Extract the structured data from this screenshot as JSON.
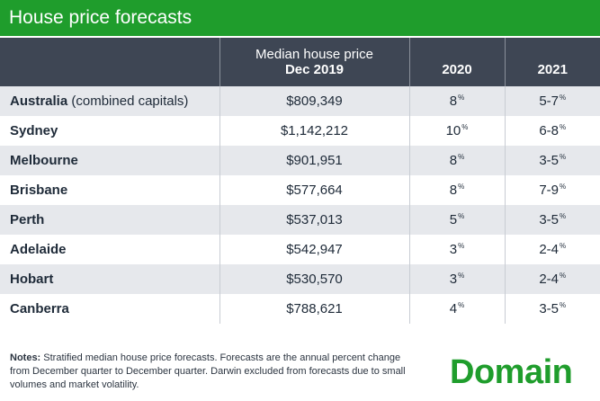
{
  "title": "House price forecasts",
  "header": {
    "col_price_line1": "Median house price",
    "col_price_line2": "Dec 2019",
    "col_2020": "2020",
    "col_2021": "2021"
  },
  "pct_symbol": "%",
  "rows": [
    {
      "name": "Australia",
      "suffix": " (combined capitals)",
      "price": "$809,349",
      "y2020": "8",
      "y2021": "5-7"
    },
    {
      "name": "Sydney",
      "suffix": "",
      "price": "$1,142,212",
      "y2020": "10",
      "y2021": "6-8"
    },
    {
      "name": "Melbourne",
      "suffix": "",
      "price": "$901,951",
      "y2020": "8",
      "y2021": "3-5"
    },
    {
      "name": "Brisbane",
      "suffix": "",
      "price": "$577,664",
      "y2020": "8",
      "y2021": "7-9"
    },
    {
      "name": "Perth",
      "suffix": "",
      "price": "$537,013",
      "y2020": "5",
      "y2021": "3-5"
    },
    {
      "name": "Adelaide",
      "suffix": "",
      "price": "$542,947",
      "y2020": "3",
      "y2021": "2-4"
    },
    {
      "name": "Hobart",
      "suffix": "",
      "price": "$530,570",
      "y2020": "3",
      "y2021": "2-4"
    },
    {
      "name": "Canberra",
      "suffix": "",
      "price": "$788,621",
      "y2020": "4",
      "y2021": "3-5"
    }
  ],
  "notes": {
    "label": "Notes:",
    "text": " Stratified median house price forecasts. Forecasts are the annual percent change from December quarter to December quarter. Darwin excluded from forecasts due to small volumes and market volatility."
  },
  "logo_text": "Domain",
  "colors": {
    "brand": "#1f9d2c",
    "header_bg": "#3e4654",
    "row_alt": "#e6e8ec"
  },
  "chart_data": {
    "type": "table",
    "title": "House price forecasts",
    "columns": [
      "",
      "Median house price Dec 2019",
      "2020",
      "2021"
    ],
    "rows": [
      [
        "Australia (combined capitals)",
        "$809,349",
        "8%",
        "5-7%"
      ],
      [
        "Sydney",
        "$1,142,212",
        "10%",
        "6-8%"
      ],
      [
        "Melbourne",
        "$901,951",
        "8%",
        "3-5%"
      ],
      [
        "Brisbane",
        "$577,664",
        "8%",
        "7-9%"
      ],
      [
        "Perth",
        "$537,013",
        "5%",
        "3-5%"
      ],
      [
        "Adelaide",
        "$542,947",
        "3%",
        "2-4%"
      ],
      [
        "Hobart",
        "$530,570",
        "3%",
        "2-4%"
      ],
      [
        "Canberra",
        "$788,621",
        "4%",
        "3-5%"
      ]
    ]
  }
}
